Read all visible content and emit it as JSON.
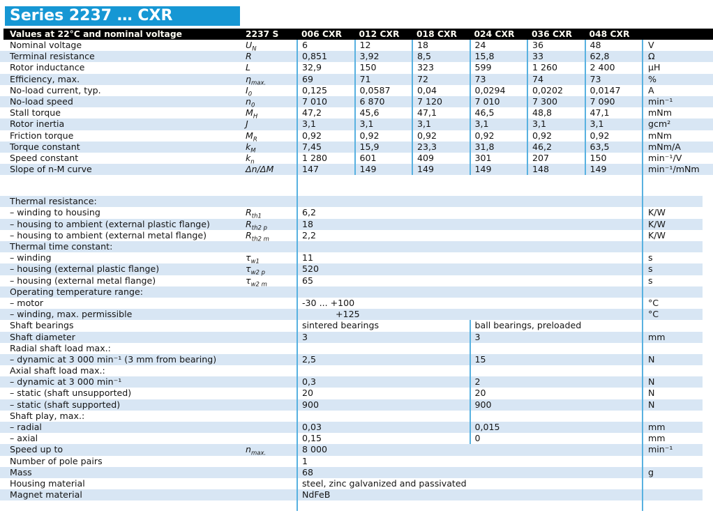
{
  "title": "Series 2237 … CXR",
  "colors": {
    "accent_blue": "#1697d4",
    "stripe": "#d8e6f4",
    "divider": "#58b1e0",
    "header_bg": "#000000"
  },
  "header": {
    "caption": "Values at 22°C and nominal voltage",
    "series_col": "2237 S",
    "columns": [
      "006 CXR",
      "012 CXR",
      "018 CXR",
      "024 CXR",
      "036 CXR",
      "048 CXR"
    ]
  },
  "rows": [
    {
      "type": "v6",
      "label": "Nominal voltage",
      "sym": "U",
      "sub": "N",
      "values": [
        "6",
        "12",
        "18",
        "24",
        "36",
        "48"
      ],
      "unit": "V"
    },
    {
      "type": "v6",
      "label": "Terminal resistance",
      "sym": "R",
      "values": [
        "0,851",
        "3,92",
        "8,5",
        "15,8",
        "33",
        "62,8"
      ],
      "unit": "Ω"
    },
    {
      "type": "v6",
      "label": "Rotor inductance",
      "sym": "L",
      "values": [
        "32,9",
        "150",
        "323",
        "599",
        "1 260",
        "2 400"
      ],
      "unit": "μH"
    },
    {
      "type": "v6",
      "label": "Efficiency, max.",
      "sym": "η",
      "sub": "max.",
      "values": [
        "69",
        "71",
        "72",
        "73",
        "74",
        "73"
      ],
      "unit": "%"
    },
    {
      "type": "v6",
      "label": "No-load current, typ.",
      "sym": "I",
      "sub": "0",
      "values": [
        "0,125",
        "0,0587",
        "0,04",
        "0,0294",
        "0,0202",
        "0,0147"
      ],
      "unit": "A"
    },
    {
      "type": "v6",
      "label": "No-load speed",
      "sym": "n",
      "sub": "0",
      "values": [
        "7 010",
        "6 870",
        "7 120",
        "7 010",
        "7 300",
        "7 090"
      ],
      "unit": "min⁻¹"
    },
    {
      "type": "v6",
      "label": "Stall torque",
      "sym": "M",
      "sub": "H",
      "values": [
        "47,2",
        "45,6",
        "47,1",
        "46,5",
        "48,8",
        "47,1"
      ],
      "unit": "mNm"
    },
    {
      "type": "v6",
      "label": "Rotor inertia",
      "sym": "J",
      "values": [
        "3,1",
        "3,1",
        "3,1",
        "3,1",
        "3,1",
        "3,1"
      ],
      "unit": "gcm²"
    },
    {
      "type": "v6",
      "label": "Friction torque",
      "sym": "M",
      "sub": "R",
      "values": [
        "0,92",
        "0,92",
        "0,92",
        "0,92",
        "0,92",
        "0,92"
      ],
      "unit": "mNm"
    },
    {
      "type": "v6",
      "label": "Torque constant",
      "sym": "k",
      "sub": "M",
      "values": [
        "7,45",
        "15,9",
        "23,3",
        "31,8",
        "46,2",
        "63,5"
      ],
      "unit": "mNm/A"
    },
    {
      "type": "v6",
      "label": "Speed constant",
      "sym": "k",
      "sub": "n",
      "values": [
        "1 280",
        "601",
        "409",
        "301",
        "207",
        "150"
      ],
      "unit": "min⁻¹/V"
    },
    {
      "type": "v6",
      "label": "Slope of n-M curve",
      "sym": "Δn/ΔM",
      "values": [
        "147",
        "149",
        "149",
        "149",
        "148",
        "149"
      ],
      "unit": "min⁻¹/mNm"
    },
    {
      "type": "gap"
    },
    {
      "type": "section",
      "label": "Thermal resistance:"
    },
    {
      "type": "v1",
      "label": "– winding to housing",
      "sym": "R",
      "sub": "th1",
      "value": "6,2",
      "unit": "K/W"
    },
    {
      "type": "v1",
      "label": "– housing to ambient (external plastic flange)",
      "sym": "R",
      "sub": "th2 p",
      "value": "18",
      "unit": "K/W"
    },
    {
      "type": "v1",
      "label": "– housing to ambient (external metal flange)",
      "sym": "R",
      "sub": "th2 m",
      "value": "2,2",
      "unit": "K/W"
    },
    {
      "type": "section",
      "label": "Thermal time constant:"
    },
    {
      "type": "v1",
      "label": "– winding",
      "sym": "τ",
      "sub": "w1",
      "value": "11",
      "unit": "s"
    },
    {
      "type": "v1",
      "label": "– housing (external plastic flange)",
      "sym": "τ",
      "sub": "w2 p",
      "value": "520",
      "unit": "s"
    },
    {
      "type": "v1",
      "label": "– housing (external metal flange)",
      "sym": "τ",
      "sub": "w2 m",
      "value": "65",
      "unit": "s"
    },
    {
      "type": "section",
      "label": "Operating temperature range:"
    },
    {
      "type": "v1",
      "label": "– motor",
      "value": "-30  ...  +100",
      "unit": "°C"
    },
    {
      "type": "v1",
      "label": "– winding, max. permissible",
      "value": "+125",
      "unit": "°C",
      "indent": true
    },
    {
      "type": "v2",
      "label": "Shaft bearings",
      "values": [
        "sintered bearings",
        "ball bearings, preloaded"
      ],
      "unit": ""
    },
    {
      "type": "v2",
      "label": "Shaft diameter",
      "values": [
        "3",
        "3"
      ],
      "unit": "mm"
    },
    {
      "type": "section2",
      "label": "Radial shaft load max.:"
    },
    {
      "type": "v2",
      "label": "– dynamic at 3 000 min⁻¹ (3 mm from bearing)",
      "values": [
        "2,5",
        "15"
      ],
      "unit": "N"
    },
    {
      "type": "section2",
      "label": "Axial shaft load max.:"
    },
    {
      "type": "v2",
      "label": "– dynamic at 3 000 min⁻¹",
      "values": [
        "0,3",
        "2"
      ],
      "unit": "N"
    },
    {
      "type": "v2",
      "label": "– static (shaft unsupported)",
      "values": [
        "20",
        "20"
      ],
      "unit": "N"
    },
    {
      "type": "v2",
      "label": "– static (shaft supported)",
      "values": [
        "900",
        "900"
      ],
      "unit": "N"
    },
    {
      "type": "section2",
      "label": "Shaft play, max.:"
    },
    {
      "type": "v2",
      "label": "– radial",
      "values": [
        "0,03",
        "0,015"
      ],
      "unit": "mm"
    },
    {
      "type": "v2",
      "label": "– axial",
      "values": [
        "0,15",
        "0"
      ],
      "unit": "mm"
    },
    {
      "type": "v1",
      "label": "Speed up to",
      "sym": "n",
      "sub": "max.",
      "value": "8 000",
      "unit": "min⁻¹"
    },
    {
      "type": "v1",
      "label": "Number of pole pairs",
      "value": "1",
      "unit": ""
    },
    {
      "type": "v1",
      "label": "Mass",
      "value": "68",
      "unit": "g"
    },
    {
      "type": "v1",
      "label": "Housing material",
      "value": "steel, zinc galvanized and passivated",
      "unit": ""
    },
    {
      "type": "v1",
      "label": "Magnet material",
      "value": "NdFeB",
      "unit": ""
    },
    {
      "type": "footer"
    }
  ]
}
